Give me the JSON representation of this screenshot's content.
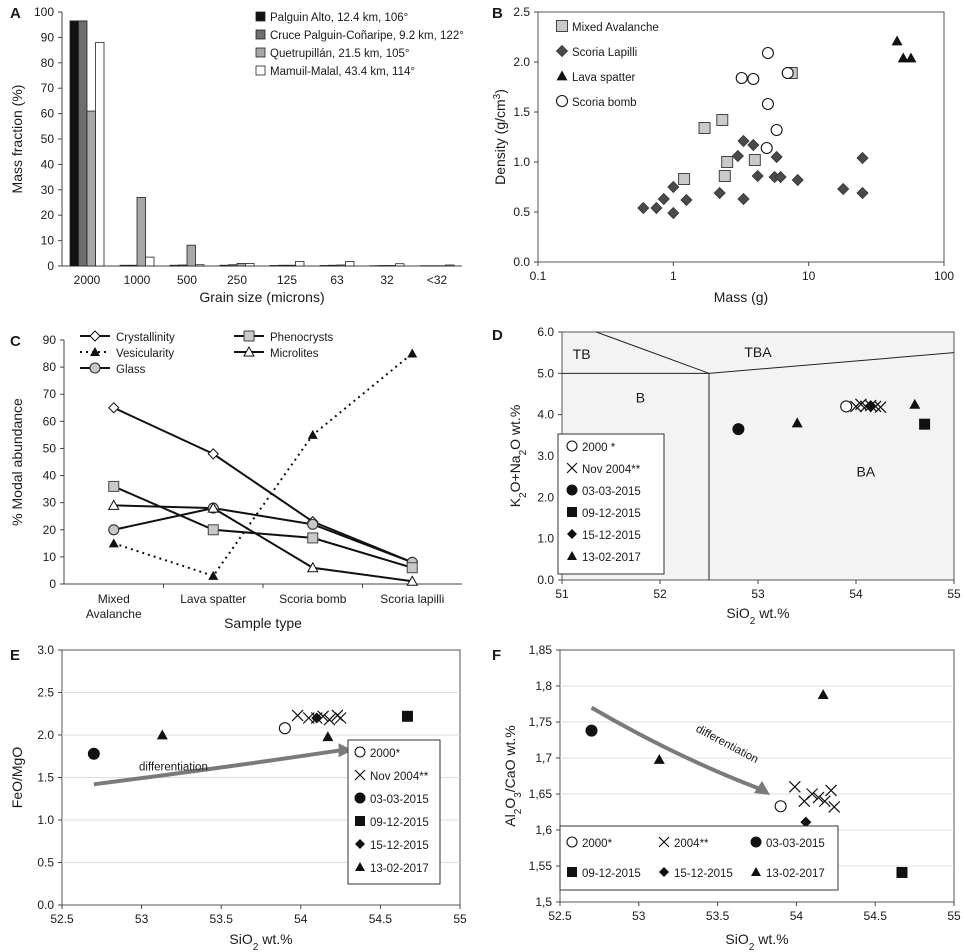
{
  "chart_data": [
    {
      "panel": "A",
      "type": "bar",
      "xlabel": "Grain size (microns)",
      "ylabel": "Mass fraction (%)",
      "ylim": [
        0,
        100
      ],
      "yticks": [
        "0",
        "10",
        "20",
        "30",
        "40",
        "50",
        "60",
        "70",
        "80",
        "90",
        "100"
      ],
      "categories": [
        "2000",
        "1000",
        "500",
        "250",
        "125",
        "63",
        "32",
        "<32"
      ],
      "series": [
        {
          "name": "Palguin Alto, 12.4 km, 106°",
          "color": "#111111",
          "values": [
            96.5,
            0.3,
            0.3,
            0.3,
            0.2,
            0.2,
            0.1,
            0.1
          ]
        },
        {
          "name": "Cruce Palguin-Coñaripe, 9.2 km, 122°",
          "color": "#6e6e6e",
          "values": [
            96.5,
            0.3,
            0.4,
            0.5,
            0.3,
            0.3,
            0.2,
            0.1
          ]
        },
        {
          "name": "Quetrupillán, 21.5 km, 105°",
          "color": "#a8a8a8",
          "values": [
            61,
            27,
            8.2,
            1.0,
            0.3,
            0.4,
            0.2,
            0.1
          ]
        },
        {
          "name": "Mamuil-Malal, 43.4 km, 114°",
          "color": "#ffffff",
          "values": [
            88,
            3.5,
            0.5,
            1.0,
            1.8,
            1.8,
            0.9,
            0.4
          ]
        }
      ]
    },
    {
      "panel": "B",
      "type": "scatter",
      "xscale": "log",
      "xlabel": "Mass (g)",
      "ylabel": "Density (g/cm³)",
      "xlim": [
        0.1,
        100
      ],
      "ylim": [
        0,
        2.5
      ],
      "xticks": [
        "0.1",
        "1",
        "10",
        "100"
      ],
      "yticks": [
        "0.0",
        "0.5",
        "1.0",
        "1.5",
        "2.0",
        "2.5"
      ],
      "series": [
        {
          "name": "Mixed Avalanche",
          "marker": "square-gray",
          "points": [
            [
              1.7,
              1.34
            ],
            [
              1.2,
              0.83
            ],
            [
              2.3,
              1.42
            ],
            [
              2.4,
              0.86
            ],
            [
              2.5,
              1.0
            ],
            [
              4.0,
              1.02
            ],
            [
              7.5,
              1.89
            ]
          ]
        },
        {
          "name": "Scoria Lapilli",
          "marker": "diamond-dark",
          "points": [
            [
              0.6,
              0.54
            ],
            [
              0.75,
              0.54
            ],
            [
              0.85,
              0.63
            ],
            [
              1.0,
              0.75
            ],
            [
              1.0,
              0.49
            ],
            [
              1.25,
              0.62
            ],
            [
              2.2,
              0.69
            ],
            [
              3.0,
              1.06
            ],
            [
              3.3,
              1.21
            ],
            [
              3.9,
              1.17
            ],
            [
              4.2,
              0.86
            ],
            [
              3.3,
              0.63
            ],
            [
              5.8,
              1.05
            ],
            [
              5.6,
              0.85
            ],
            [
              6.2,
              0.85
            ],
            [
              8.3,
              0.82
            ],
            [
              18,
              0.73
            ],
            [
              25,
              0.69
            ],
            [
              25,
              1.04
            ]
          ]
        },
        {
          "name": "Lava spatter",
          "marker": "triangle-black",
          "points": [
            [
              45,
              2.21
            ],
            [
              50,
              2.04
            ],
            [
              57,
              2.04
            ]
          ]
        },
        {
          "name": "Scoria bomb",
          "marker": "circle-open",
          "points": [
            [
              5.0,
              2.09
            ],
            [
              3.2,
              1.84
            ],
            [
              3.9,
              1.83
            ],
            [
              7.0,
              1.89
            ],
            [
              5.0,
              1.58
            ],
            [
              5.8,
              1.32
            ],
            [
              4.9,
              1.14
            ]
          ]
        }
      ]
    },
    {
      "panel": "C",
      "type": "line",
      "xlabel": "Sample type",
      "ylabel": "% Modal abundance",
      "ylim": [
        0,
        90
      ],
      "yticks": [
        "0",
        "10",
        "20",
        "30",
        "40",
        "50",
        "60",
        "70",
        "80",
        "90"
      ],
      "categories": [
        "Mixed Avalanche",
        "Lava spatter",
        "Scoria bomb",
        "Scoria lapilli"
      ],
      "category_lines": [
        [
          "Mixed",
          "Avalanche"
        ],
        [
          "Lava spatter"
        ],
        [
          "Scoria bomb"
        ],
        [
          "Scoria lapilli"
        ]
      ],
      "series": [
        {
          "name": "Crystallinity",
          "marker": "diamond-open",
          "dash": false,
          "values": [
            65,
            48,
            23,
            8
          ]
        },
        {
          "name": "Vesicularity",
          "marker": "triangle-black",
          "dash": true,
          "values": [
            15,
            3,
            55,
            85
          ]
        },
        {
          "name": "Glass",
          "marker": "circle-gray",
          "dash": false,
          "values": [
            20,
            28,
            22,
            8
          ]
        },
        {
          "name": "Phenocrysts",
          "marker": "square-gray",
          "dash": false,
          "values": [
            36,
            20,
            17,
            6
          ]
        },
        {
          "name": "Microlites",
          "marker": "triangle-open",
          "dash": false,
          "values": [
            29,
            28,
            6,
            1
          ]
        }
      ]
    },
    {
      "panel": "D",
      "type": "scatter",
      "xlabel": "SiO2 wt.%",
      "ylabel": "K2O+Na2O wt.%",
      "xlim": [
        51,
        55
      ],
      "ylim": [
        0,
        6
      ],
      "xticks": [
        "51",
        "52",
        "53",
        "54",
        "55"
      ],
      "yticks": [
        "0.0",
        "1.0",
        "2.0",
        "3.0",
        "4.0",
        "5.0",
        "6.0"
      ],
      "fields": [
        "TB",
        "TBA",
        "B",
        "BA"
      ],
      "series": [
        {
          "name": "2000 *",
          "marker": "circle-open",
          "points": [
            [
              53.9,
              4.2
            ]
          ]
        },
        {
          "name": "Nov 2004**",
          "marker": "x",
          "points": [
            [
              54.0,
              4.2
            ],
            [
              54.05,
              4.25
            ],
            [
              54.1,
              4.2
            ],
            [
              54.15,
              4.22
            ],
            [
              54.2,
              4.2
            ],
            [
              54.25,
              4.18
            ]
          ]
        },
        {
          "name": "03-03-2015",
          "marker": "circle-black",
          "points": [
            [
              52.8,
              3.65
            ]
          ]
        },
        {
          "name": "09-12-2015",
          "marker": "square-black",
          "points": [
            [
              54.7,
              3.77
            ]
          ]
        },
        {
          "name": "15-12-2015",
          "marker": "diamond-black",
          "points": [
            [
              54.15,
              4.22
            ]
          ]
        },
        {
          "name": "13-02-2017",
          "marker": "triangle-black",
          "points": [
            [
              53.4,
              3.8
            ],
            [
              54.6,
              4.25
            ]
          ]
        }
      ]
    },
    {
      "panel": "E",
      "type": "scatter",
      "xlabel": "SiO2 wt.%",
      "ylabel": "FeO/MgO",
      "xlim": [
        52.5,
        55
      ],
      "ylim": [
        0,
        3.0
      ],
      "xticks": [
        "52.5",
        "53",
        "53.5",
        "54",
        "54.5",
        "55"
      ],
      "yticks": [
        "0.0",
        "0.5",
        "1.0",
        "1.5",
        "2.0",
        "2.5",
        "3.0"
      ],
      "annotation": "differentiation",
      "arrow": {
        "from": [
          52.7,
          1.42
        ],
        "to": [
          54.3,
          1.82
        ]
      },
      "series": [
        {
          "name": "2000*",
          "marker": "circle-open",
          "points": [
            [
              53.9,
              2.08
            ]
          ]
        },
        {
          "name": "Nov 2004**",
          "marker": "x",
          "points": [
            [
              53.98,
              2.23
            ],
            [
              54.05,
              2.2
            ],
            [
              54.1,
              2.2
            ],
            [
              54.14,
              2.22
            ],
            [
              54.18,
              2.18
            ],
            [
              54.23,
              2.23
            ],
            [
              54.25,
              2.2
            ]
          ]
        },
        {
          "name": "03-03-2015",
          "marker": "circle-black",
          "points": [
            [
              52.7,
              1.78
            ]
          ]
        },
        {
          "name": "09-12-2015",
          "marker": "square-black",
          "points": [
            [
              54.67,
              2.22
            ]
          ]
        },
        {
          "name": "15-12-2015",
          "marker": "diamond-black",
          "points": [
            [
              54.1,
              2.2
            ]
          ]
        },
        {
          "name": "13-02-2017",
          "marker": "triangle-black",
          "points": [
            [
              53.13,
              2.0
            ],
            [
              54.17,
              1.98
            ]
          ]
        }
      ]
    },
    {
      "panel": "F",
      "type": "scatter",
      "xlabel": "SiO2 wt.%",
      "ylabel": "Al2O3/CaO wt.%",
      "xlim": [
        52.5,
        55
      ],
      "ylim": [
        1.5,
        1.85
      ],
      "xticks": [
        "52.5",
        "53",
        "53.5",
        "54",
        "54.5",
        "55"
      ],
      "yticks": [
        "1,5",
        "1,55",
        "1,6",
        "1,65",
        "1,7",
        "1,75",
        "1,8",
        "1,85"
      ],
      "annotation": "differentiation",
      "arrow": {
        "from": [
          52.7,
          1.77
        ],
        "to": [
          53.82,
          1.65
        ]
      },
      "series": [
        {
          "name": "2000*",
          "marker": "circle-open",
          "points": [
            [
              53.9,
              1.633
            ]
          ]
        },
        {
          "name": "2004**",
          "marker": "x",
          "points": [
            [
              53.99,
              1.66
            ],
            [
              54.05,
              1.64
            ],
            [
              54.1,
              1.65
            ],
            [
              54.14,
              1.645
            ],
            [
              54.18,
              1.64
            ],
            [
              54.22,
              1.655
            ],
            [
              54.24,
              1.632
            ]
          ]
        },
        {
          "name": "03-03-2015",
          "marker": "circle-black",
          "points": [
            [
              52.7,
              1.738
            ]
          ]
        },
        {
          "name": "09-12-2015",
          "marker": "square-black",
          "points": [
            [
              54.67,
              1.541
            ]
          ]
        },
        {
          "name": "15-12-2015",
          "marker": "diamond-black",
          "points": [
            [
              54.06,
              1.611
            ]
          ]
        },
        {
          "name": "13-02-2017",
          "marker": "triangle-black",
          "points": [
            [
              53.13,
              1.698
            ],
            [
              54.17,
              1.788
            ]
          ]
        }
      ]
    }
  ]
}
